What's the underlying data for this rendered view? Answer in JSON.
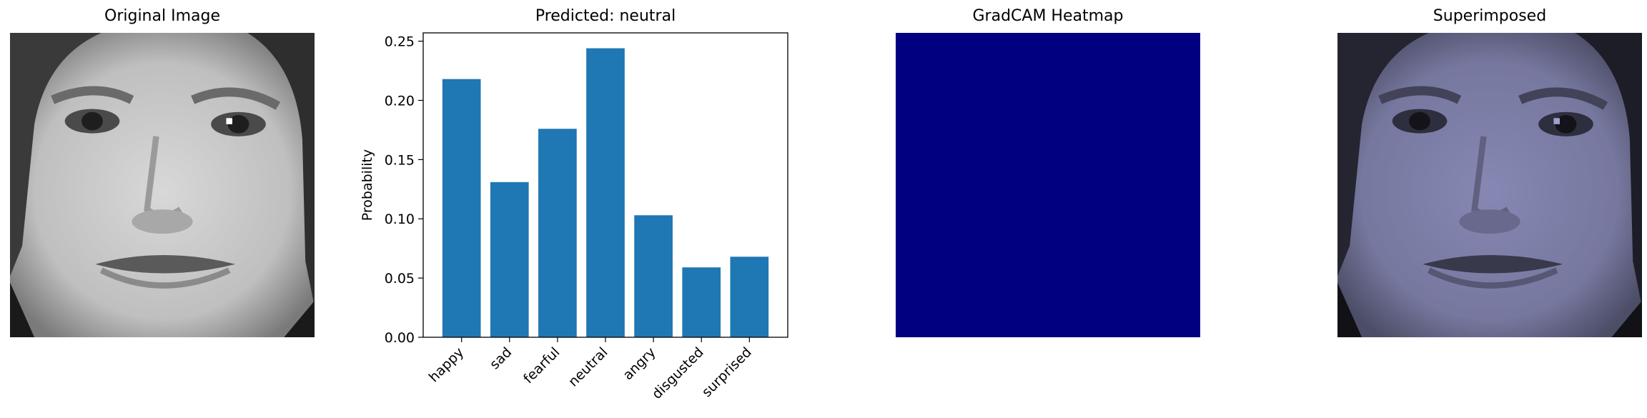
{
  "panels": {
    "original_title": "Original Image",
    "chart_title": "Predicted: neutral",
    "heatmap_title": "GradCAM Heatmap",
    "superimposed_title": "Superimposed"
  },
  "colors": {
    "bar": "#1f77b4",
    "heatmap": "#000080",
    "overlay_tint": "#2a2da0"
  },
  "chart_data": {
    "type": "bar",
    "title": "Predicted: neutral",
    "xlabel": "",
    "ylabel": "Probability",
    "categories": [
      "happy",
      "sad",
      "fearful",
      "neutral",
      "angry",
      "disgusted",
      "surprised"
    ],
    "values": [
      0.218,
      0.131,
      0.176,
      0.244,
      0.103,
      0.059,
      0.068
    ],
    "ylim": [
      0,
      0.257
    ],
    "yticks": [
      "0.00",
      "0.05",
      "0.10",
      "0.15",
      "0.20",
      "0.25"
    ],
    "grid": false
  }
}
